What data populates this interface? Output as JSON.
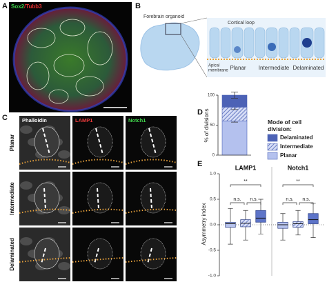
{
  "figure": {
    "panel_labels": [
      "A",
      "B",
      "C",
      "D",
      "E"
    ],
    "panel_a": {
      "stains": [
        "Sox2",
        "/Tubb3"
      ]
    },
    "panel_b": {
      "organoid_label": "Forebrain organoid",
      "zoom_label": "Cortical loop",
      "membrane_label": [
        "Apical",
        "membrane"
      ],
      "modes": [
        "Planar",
        "Intermediate",
        "Delaminated"
      ]
    },
    "panel_c": {
      "columns": [
        "Phalloidin",
        "LAMP1",
        "Notch1"
      ],
      "rows": [
        "Planar",
        "Intermediate",
        "Delaminated"
      ]
    }
  },
  "chart_data": [
    {
      "type": "stacked_bar",
      "ylabel": "% of divisions",
      "ylim": [
        0,
        100
      ],
      "yticks": [
        0,
        50,
        100
      ],
      "legend_title": "Mode of cell division:",
      "series": [
        {
          "name": "Delaminated",
          "color": "#4c62b6",
          "hatch": false,
          "values": [
            20
          ],
          "errors": [
            5
          ]
        },
        {
          "name": "Intermediate",
          "color": "#8fa1de",
          "hatch": true,
          "values": [
            23
          ],
          "errors": [
            4
          ]
        },
        {
          "name": "Planar",
          "color": "#b4c1ee",
          "hatch": false,
          "values": [
            57
          ],
          "errors": [
            2
          ]
        }
      ]
    },
    {
      "type": "box",
      "ylabel": "Asymmetry index",
      "ylim": [
        -1,
        1
      ],
      "yticks": [
        {
          "value": -1,
          "label": "-1.0"
        },
        {
          "value": -0.5,
          "label": "-0.5"
        },
        {
          "value": 0,
          "label": "0.0"
        },
        {
          "value": 0.5,
          "label": "0.5"
        },
        {
          "value": 1,
          "label": "1.0"
        }
      ],
      "colors": [
        "#b8c4ee",
        "#a2b2e6",
        "#5d74c8"
      ],
      "hatch": [
        false,
        true,
        false
      ],
      "groups": [
        {
          "label": "LAMP1",
          "significance": [
            "n.s.",
            "n.s.",
            "**"
          ],
          "boxes": [
            {
              "min": -0.38,
              "q1": -0.05,
              "median": 0.02,
              "q3": 0.05,
              "max": 0.32
            },
            {
              "min": -0.3,
              "q1": -0.04,
              "median": 0.03,
              "q3": 0.1,
              "max": 0.28
            },
            {
              "min": -0.18,
              "q1": 0.05,
              "median": 0.13,
              "q3": 0.28,
              "max": 0.5
            }
          ]
        },
        {
          "label": "Notch1",
          "significance": [
            "n.s.",
            "n.s.",
            "**"
          ],
          "boxes": [
            {
              "min": -0.3,
              "q1": -0.07,
              "median": 0.0,
              "q3": 0.05,
              "max": 0.22
            },
            {
              "min": -0.2,
              "q1": -0.05,
              "median": 0.02,
              "q3": 0.06,
              "max": 0.28
            },
            {
              "min": -0.25,
              "q1": 0.02,
              "median": 0.1,
              "q3": 0.22,
              "max": 0.42
            }
          ]
        }
      ]
    }
  ]
}
